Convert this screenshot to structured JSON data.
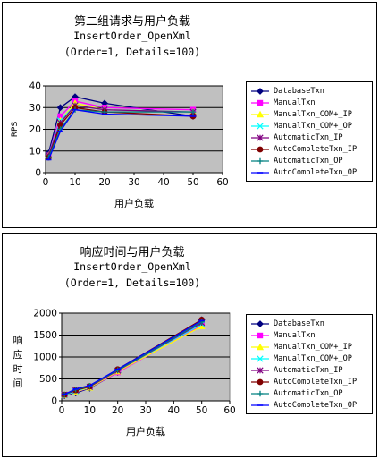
{
  "chart_data": [
    {
      "type": "line",
      "title": "第二组请求与用户负载",
      "subtitle": "InsertOrder_OpenXml",
      "subtitle2": "(Order=1, Details=100)",
      "xlabel": "用户负载",
      "ylabel": "RPS",
      "xlim": [
        0,
        60
      ],
      "ylim": [
        0,
        40
      ],
      "xticks": [
        0,
        10,
        20,
        30,
        40,
        50,
        60
      ],
      "yticks": [
        0,
        10,
        20,
        30,
        40
      ],
      "grid": "horizontal",
      "legend": "right",
      "x": [
        1,
        5,
        10,
        20,
        50
      ],
      "series": [
        {
          "name": "DatabaseTxn",
          "values": [
            9,
            30,
            35,
            32,
            26
          ],
          "color": "#000080",
          "marker": "diamond"
        },
        {
          "name": "ManualTxn",
          "values": [
            8,
            26,
            33,
            30,
            29
          ],
          "color": "#ff00ff",
          "marker": "square"
        },
        {
          "name": "ManualTxn_COM+_IP",
          "values": [
            8,
            24,
            32,
            29,
            28
          ],
          "color": "#ffff00",
          "marker": "triangle"
        },
        {
          "name": "ManualTxn_COM+_OP",
          "values": [
            8,
            24,
            31,
            29,
            28
          ],
          "color": "#00ffff",
          "marker": "x"
        },
        {
          "name": "AutomaticTxn_IP",
          "values": [
            8,
            23,
            31,
            29,
            28
          ],
          "color": "#800080",
          "marker": "star"
        },
        {
          "name": "AutoCompleteTxn_IP",
          "values": [
            7,
            22,
            30,
            28,
            26
          ],
          "color": "#800000",
          "marker": "circle"
        },
        {
          "name": "AutomaticTxn_OP",
          "values": [
            7,
            20,
            29,
            28,
            28
          ],
          "color": "#008080",
          "marker": "plus"
        },
        {
          "name": "AutoCompleteTxn_OP",
          "values": [
            6,
            19,
            29,
            27,
            26
          ],
          "color": "#0000ff",
          "marker": "dash"
        }
      ]
    },
    {
      "type": "line",
      "title": "响应时间与用户负载",
      "subtitle": "InsertOrder_OpenXml",
      "subtitle2": "(Order=1, Details=100)",
      "xlabel": "用户负载",
      "ylabel": "响应时间",
      "xlim": [
        0,
        60
      ],
      "ylim": [
        0,
        2000
      ],
      "xticks": [
        0,
        10,
        20,
        30,
        40,
        50,
        60
      ],
      "yticks": [
        0,
        500,
        1000,
        1500,
        2000
      ],
      "grid": "horizontal",
      "legend": "right",
      "x": [
        1,
        5,
        10,
        20,
        50
      ],
      "series": [
        {
          "name": "DatabaseTxn",
          "values": [
            120,
            180,
            290,
            650,
            1850
          ],
          "color": "#000080",
          "marker": "diamond"
        },
        {
          "name": "ManualTxn",
          "values": [
            130,
            200,
            300,
            650,
            1720
          ],
          "color": "#ff00ff",
          "marker": "square"
        },
        {
          "name": "ManualTxn_COM+_IP",
          "values": [
            130,
            210,
            300,
            670,
            1700
          ],
          "color": "#ffff00",
          "marker": "triangle"
        },
        {
          "name": "ManualTxn_COM+_OP",
          "values": [
            130,
            220,
            320,
            690,
            1750
          ],
          "color": "#00ffff",
          "marker": "x"
        },
        {
          "name": "AutomaticTxn_IP",
          "values": [
            140,
            240,
            320,
            690,
            1780
          ],
          "color": "#800080",
          "marker": "star"
        },
        {
          "name": "AutoCompleteTxn_IP",
          "values": [
            140,
            240,
            330,
            720,
            1850
          ],
          "color": "#800000",
          "marker": "circle"
        },
        {
          "name": "AutomaticTxn_OP",
          "values": [
            140,
            260,
            340,
            700,
            1800
          ],
          "color": "#008080",
          "marker": "plus"
        },
        {
          "name": "AutoCompleteTxn_OP",
          "values": [
            150,
            270,
            350,
            720,
            1830
          ],
          "color": "#0000ff",
          "marker": "dash"
        }
      ]
    }
  ]
}
